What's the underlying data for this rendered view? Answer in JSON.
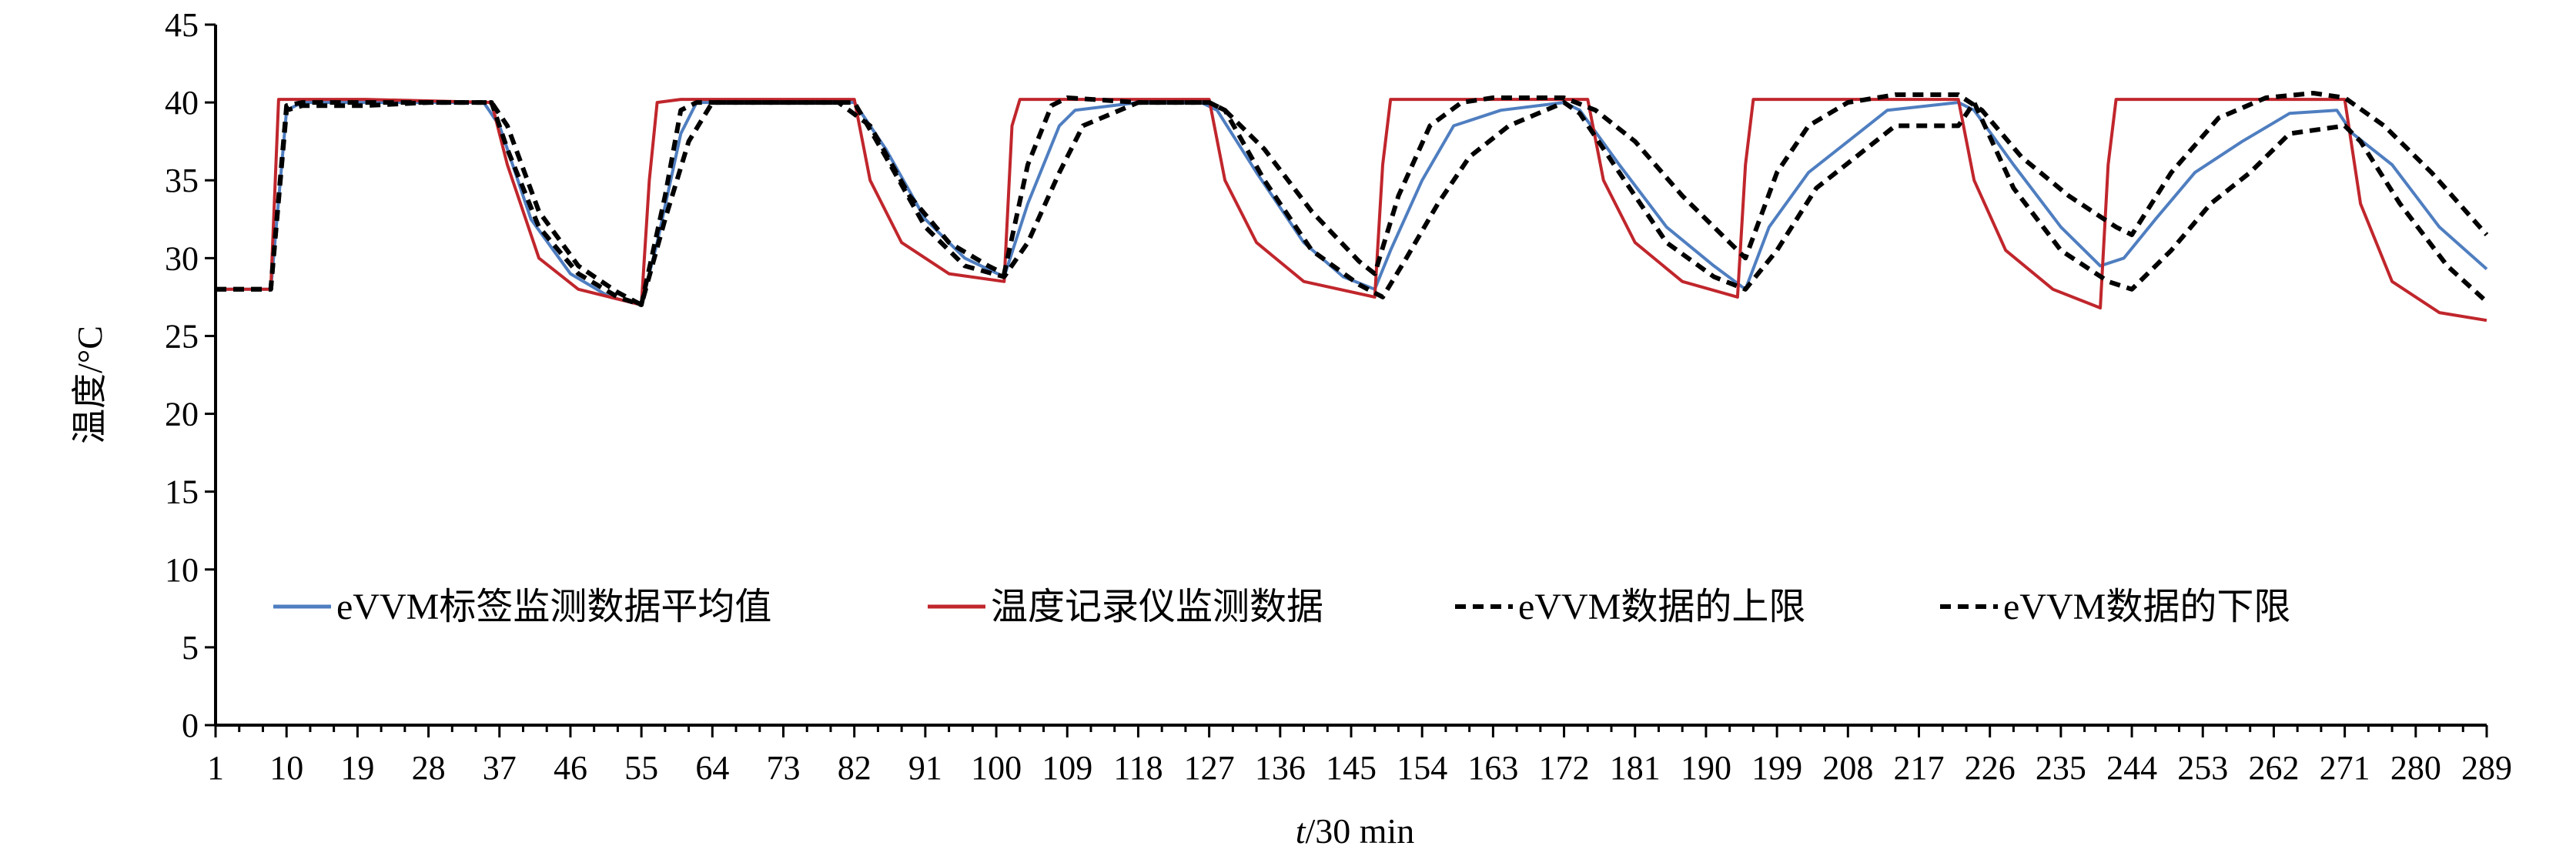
{
  "chart_data": {
    "type": "line",
    "title": "",
    "xlabel_italic": "t",
    "xlabel_rest": "/30 min",
    "ylabel": "温度/°C",
    "ylim": [
      0,
      45
    ],
    "xlim": [
      1,
      289
    ],
    "yticks": [
      0,
      5,
      10,
      15,
      20,
      25,
      30,
      35,
      40,
      45
    ],
    "xticks": [
      1,
      10,
      19,
      28,
      37,
      46,
      55,
      64,
      73,
      82,
      91,
      100,
      109,
      118,
      127,
      136,
      145,
      154,
      163,
      172,
      181,
      190,
      199,
      208,
      217,
      226,
      235,
      244,
      253,
      262,
      271,
      280,
      289
    ],
    "grid": false,
    "legend_position": "inside-bottom",
    "series": [
      {
        "name": "eVVM标签监测数据平均值",
        "color": "#4f7ec0",
        "style": "solid",
        "x": [
          1,
          8,
          10,
          12,
          20,
          28,
          35,
          37,
          41,
          46,
          51,
          55,
          57,
          60,
          62,
          70,
          80,
          82,
          86,
          91,
          96,
          101,
          104,
          108,
          110,
          118,
          126,
          128,
          133,
          139,
          144,
          148,
          150,
          154,
          158,
          164,
          172,
          174,
          179,
          185,
          191,
          195,
          198,
          203,
          208,
          213,
          222,
          224,
          229,
          235,
          240,
          243,
          247,
          252,
          258,
          264,
          270,
          272,
          277,
          283,
          289
        ],
        "values": [
          28,
          28,
          39.5,
          40,
          40,
          40,
          40,
          38.5,
          32.5,
          29,
          27.5,
          27,
          31,
          38,
          40,
          40,
          40,
          40,
          37,
          32.5,
          30,
          28.8,
          33.5,
          38.5,
          39.5,
          40,
          40,
          39.5,
          35.5,
          31,
          28.8,
          28,
          30.5,
          35,
          38.5,
          39.5,
          40,
          39.5,
          36,
          32,
          29.5,
          28,
          32,
          35.5,
          37.5,
          39.5,
          40,
          39.5,
          36,
          32,
          29.5,
          30,
          32.5,
          35.5,
          37.5,
          39.3,
          39.5,
          38,
          36,
          32,
          29.3
        ]
      },
      {
        "name": "温度记录仪监测数据",
        "color": "#c0262c",
        "style": "solid",
        "x": [
          1,
          8,
          9,
          20,
          36,
          38,
          42,
          47,
          55,
          56,
          57,
          60,
          82,
          84,
          88,
          94,
          101,
          102,
          103,
          127,
          129,
          133,
          139,
          148,
          149,
          150,
          175,
          177,
          181,
          187,
          194,
          195,
          196,
          222,
          224,
          228,
          234,
          240,
          241,
          242,
          271,
          273,
          277,
          283,
          289
        ],
        "values": [
          28,
          28,
          40.2,
          40.2,
          40,
          36,
          30,
          28,
          27,
          35,
          40,
          40.2,
          40.2,
          35,
          31,
          29,
          28.5,
          38.5,
          40.2,
          40.2,
          35,
          31,
          28.5,
          27.5,
          36,
          40.2,
          40.2,
          35,
          31,
          28.5,
          27.5,
          36,
          40.2,
          40.2,
          35,
          30.5,
          28,
          26.8,
          36,
          40.2,
          40.2,
          33.5,
          28.5,
          26.5,
          26
        ]
      },
      {
        "name": "eVVM数据的上限",
        "color": "#000000",
        "style": "dashed",
        "x": [
          1,
          8,
          10,
          12,
          20,
          28,
          36,
          38,
          42,
          47,
          52,
          55,
          58,
          60,
          62,
          70,
          80,
          84,
          89,
          94,
          99,
          101,
          104,
          107,
          109,
          118,
          127,
          129,
          134,
          140,
          146,
          148,
          151,
          155,
          159,
          163,
          172,
          176,
          181,
          187,
          193,
          195,
          199,
          203,
          208,
          214,
          222,
          225,
          230,
          236,
          242,
          244,
          249,
          255,
          261,
          267,
          271,
          276,
          282,
          289
        ],
        "values": [
          28,
          28,
          39.8,
          40,
          40,
          40,
          40,
          37,
          32,
          29,
          27.5,
          27,
          34,
          39.5,
          40,
          40,
          40,
          38.5,
          34,
          31,
          29.5,
          29,
          36,
          39.8,
          40.3,
          40,
          40,
          39.5,
          37,
          33,
          29.8,
          29,
          34,
          38.5,
          40,
          40.3,
          40.3,
          39.5,
          37.5,
          34,
          31,
          30,
          35.5,
          38.5,
          40,
          40.5,
          40.5,
          39.5,
          36.5,
          34,
          32,
          31.5,
          35.5,
          39,
          40.3,
          40.6,
          40.3,
          38.5,
          35.5,
          31.5
        ]
      },
      {
        "name": "eVVM数据的下限",
        "color": "#000000",
        "style": "dashed",
        "x": [
          1,
          8,
          10,
          12,
          20,
          28,
          36,
          38,
          42,
          47,
          52,
          55,
          58,
          61,
          64,
          70,
          80,
          82,
          86,
          91,
          96,
          101,
          104,
          108,
          111,
          118,
          127,
          129,
          134,
          140,
          146,
          149,
          152,
          156,
          160,
          165,
          172,
          174,
          179,
          185,
          191,
          195,
          199,
          204,
          209,
          214,
          222,
          224,
          229,
          235,
          241,
          244,
          249,
          254,
          259,
          264,
          271,
          273,
          278,
          284,
          289
        ],
        "values": [
          28,
          28,
          39.5,
          39.8,
          39.8,
          40,
          40,
          38.5,
          33,
          29.5,
          27.8,
          27,
          32.5,
          37.5,
          40,
          40,
          40,
          40,
          36.5,
          32,
          29.5,
          28.8,
          31,
          35.5,
          38.5,
          40,
          40,
          39.5,
          35,
          30.5,
          28.3,
          27.5,
          30,
          33.5,
          36.5,
          38.5,
          40,
          39.3,
          35.5,
          31,
          28.8,
          28,
          30.5,
          34.5,
          36.5,
          38.5,
          38.5,
          40,
          34.5,
          30.5,
          28.5,
          28,
          30.5,
          33.5,
          35.5,
          38,
          38.5,
          37.5,
          33.5,
          29.5,
          27.2
        ]
      }
    ]
  }
}
